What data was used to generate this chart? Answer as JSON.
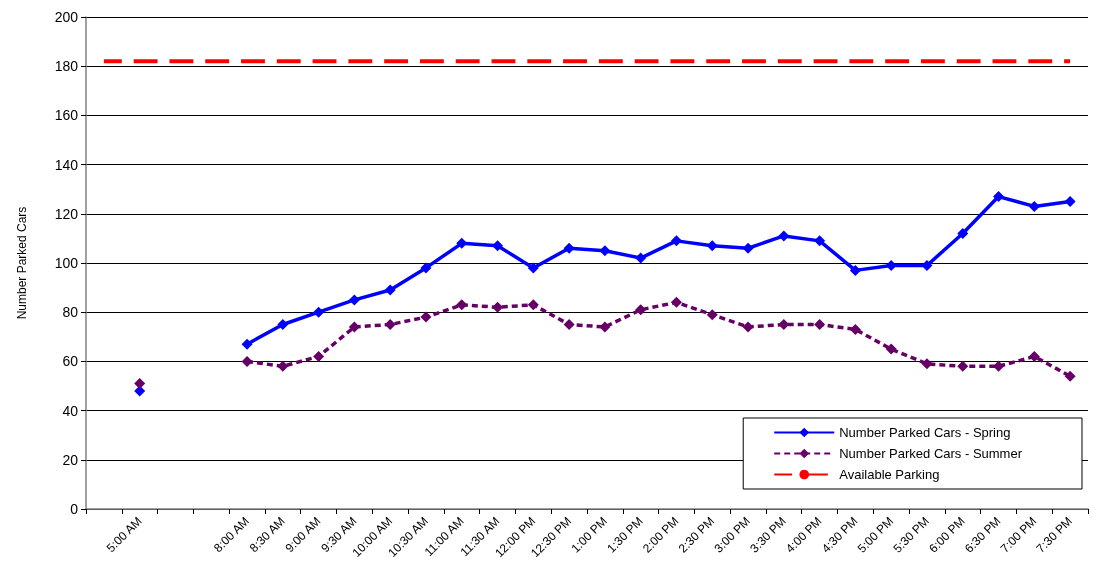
{
  "chart_data": {
    "type": "line",
    "ylabel": "Number Parked Cars",
    "categories": [
      null,
      "5:00 AM",
      null,
      null,
      "8:00 AM",
      "8:30 AM",
      "9:00 AM",
      "9:30 AM",
      "10:00 AM",
      "10:30 AM",
      "11:00 AM",
      "11:30 AM",
      "12:00 PM",
      "12:30 PM",
      "1:00 PM",
      "1:30 PM",
      "2:00 PM",
      "2:30 PM",
      "3:00 PM",
      "3:30 PM",
      "4:00 PM",
      "4:30 PM",
      "5:00 PM",
      "5:30 PM",
      "6:00 PM",
      "6:30 PM",
      "7:00 PM",
      "7:30 PM"
    ],
    "series": [
      {
        "name": "Number Parked Cars - Spring",
        "color": "#0000ff",
        "marker": "diamond",
        "line_style": "solid",
        "values": [
          null,
          48,
          null,
          null,
          67,
          75,
          80,
          85,
          89,
          98,
          108,
          107,
          98,
          106,
          105,
          102,
          109,
          107,
          106,
          111,
          109,
          97,
          99,
          99,
          112,
          127,
          123,
          125
        ]
      },
      {
        "name": "Number Parked Cars - Summer",
        "color": "#660066",
        "marker": "diamond",
        "line_style": "dashed",
        "values": [
          null,
          51,
          null,
          null,
          60,
          58,
          62,
          74,
          75,
          78,
          83,
          82,
          83,
          75,
          74,
          81,
          84,
          79,
          74,
          75,
          75,
          73,
          65,
          59,
          58,
          58,
          62,
          54
        ]
      },
      {
        "name": "Available Parking",
        "color": "#ff0000",
        "marker": "none",
        "line_style": "dashed",
        "values": [
          182,
          182,
          182,
          182,
          182,
          182,
          182,
          182,
          182,
          182,
          182,
          182,
          182,
          182,
          182,
          182,
          182,
          182,
          182,
          182,
          182,
          182,
          182,
          182,
          182,
          182,
          182,
          182
        ]
      }
    ],
    "ylim": [
      0,
      200
    ],
    "yticks": [
      0,
      20,
      40,
      60,
      80,
      100,
      120,
      140,
      160,
      180,
      200
    ],
    "grid": "y",
    "legend": "bottom right"
  }
}
